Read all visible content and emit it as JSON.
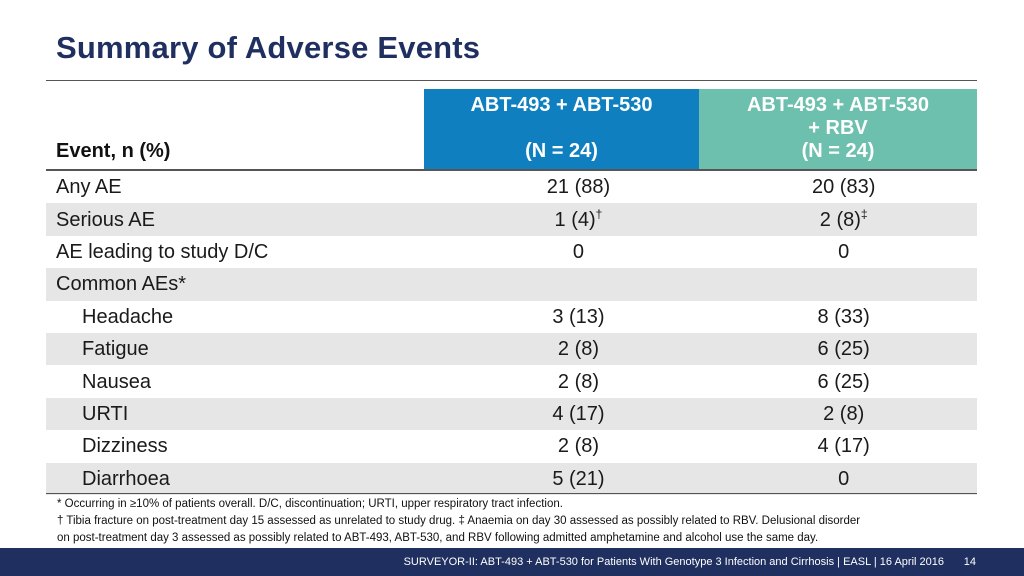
{
  "slide": {
    "title": "Summary of Adverse Events"
  },
  "table": {
    "row_header": "Event, n (%)",
    "columns": [
      {
        "line1": "ABT-493 + ABT-530",
        "line2": "",
        "n": "(N = 24)",
        "color": "#0f7fc0"
      },
      {
        "line1": "ABT-493 + ABT-530",
        "line2": "+ RBV",
        "n": "(N = 24)",
        "color": "#6dbfae"
      }
    ],
    "rows": [
      {
        "label": "Any AE",
        "a": "21 (88)",
        "a_sup": "",
        "b": "20 (83)",
        "b_sup": ""
      },
      {
        "label": "Serious AE",
        "a": "1 (4)",
        "a_sup": "†",
        "b": "2 (8)",
        "b_sup": "‡"
      },
      {
        "label": "AE leading to study D/C",
        "a": "0",
        "a_sup": "",
        "b": "0",
        "b_sup": ""
      },
      {
        "label": "Common AEs*",
        "a": "",
        "a_sup": "",
        "b": "",
        "b_sup": ""
      },
      {
        "label": "Headache",
        "a": "3 (13)",
        "a_sup": "",
        "b": "8 (33)",
        "b_sup": ""
      },
      {
        "label": "Fatigue",
        "a": "2 (8)",
        "a_sup": "",
        "b": "6 (25)",
        "b_sup": ""
      },
      {
        "label": "Nausea",
        "a": "2 (8)",
        "a_sup": "",
        "b": "6 (25)",
        "b_sup": ""
      },
      {
        "label": "URTI",
        "a": "4 (17)",
        "a_sup": "",
        "b": "2 (8)",
        "b_sup": ""
      },
      {
        "label": "Dizziness",
        "a": "2 (8)",
        "a_sup": "",
        "b": "4 (17)",
        "b_sup": ""
      },
      {
        "label": "Diarrhoea",
        "a": "5 (21)",
        "a_sup": "",
        "b": "0",
        "b_sup": ""
      }
    ]
  },
  "footnotes": {
    "line1": "* Occurring in ≥10% of patients overall. D/C, discontinuation; URTI, upper respiratory tract infection.",
    "line2": "† Tibia fracture on post-treatment day 15 assessed as unrelated to study drug. ‡ Anaemia on day 30 assessed as possibly related to RBV. Delusional disorder",
    "line3": "on post-treatment day 3 assessed as possibly related to ABT-493, ABT-530, and RBV following admitted amphetamine and alcohol use the same day."
  },
  "footer": {
    "text": "SURVEYOR-II: ABT-493 + ABT-530 for Patients With Genotype 3 Infection and Cirrhosis  | EASL | 16 April 2016",
    "page": "14",
    "color": "#1f2f5f"
  }
}
